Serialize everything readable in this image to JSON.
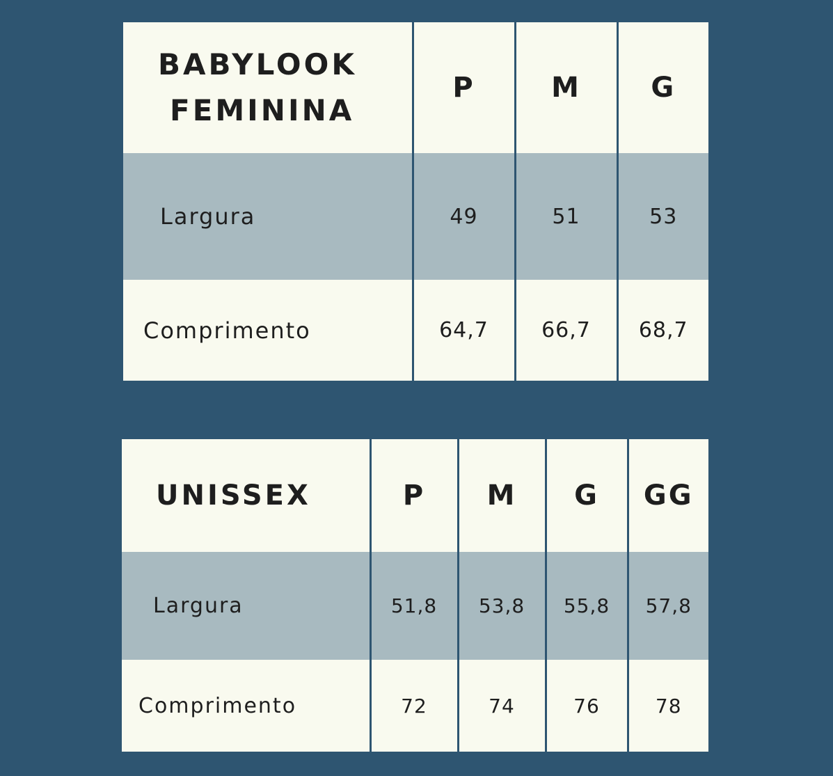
{
  "tables": [
    {
      "title_line1": "BABYLOOK",
      "title_line2": "FEMININA",
      "sizes": [
        "P",
        "M",
        "G"
      ],
      "rows": [
        {
          "label": "Largura",
          "values": [
            "49",
            "51",
            "53"
          ]
        },
        {
          "label": "Comprimento",
          "values": [
            "64,7",
            "66,7",
            "68,7"
          ]
        }
      ]
    },
    {
      "title_line1": "UNISSEX",
      "sizes": [
        "P",
        "M",
        "G",
        "GG"
      ],
      "rows": [
        {
          "label": "Largura",
          "values": [
            "51,8",
            "53,8",
            "55,8",
            "57,8"
          ]
        },
        {
          "label": "Comprimento",
          "values": [
            "72",
            "74",
            "76",
            "78"
          ]
        }
      ]
    }
  ],
  "colors": {
    "background": "#2e5571",
    "cell_light": "#f9faef",
    "cell_muted": "#a8bac0"
  }
}
